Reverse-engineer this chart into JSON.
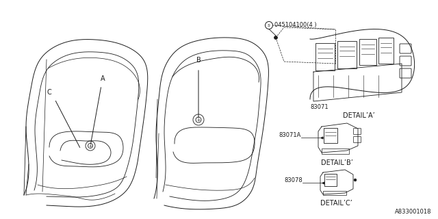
{
  "bg_color": "#ffffff",
  "line_color": "#1a1a1a",
  "part_number_screw": "045104100(4 )",
  "part_83071": "83071",
  "part_83071A": "83071A",
  "part_83078": "83078",
  "detail_a": "DETAIL’A’",
  "detail_b": "DETAIL’B’",
  "detail_c": "DETAIL’C’",
  "label_a": "A",
  "label_b": "B",
  "label_c": "C",
  "footer": "A833001018",
  "font_size_small": 6,
  "font_size_med": 7,
  "font_size_footer": 6
}
